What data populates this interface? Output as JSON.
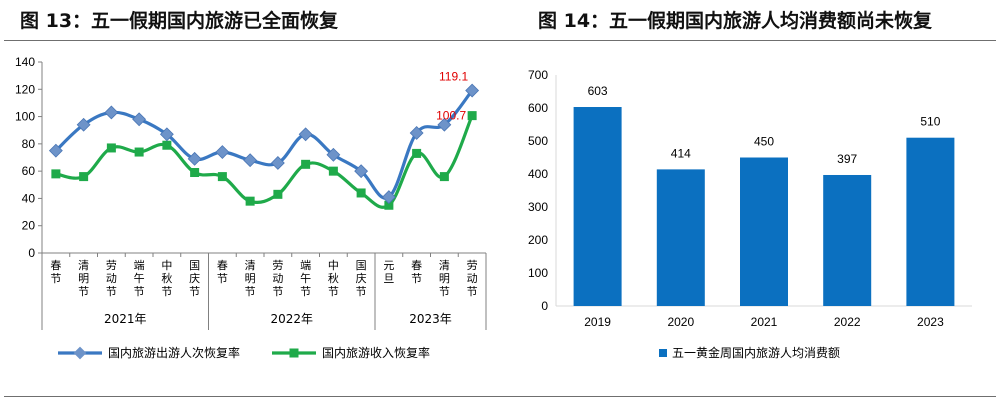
{
  "titles": {
    "left": "图 13：五一假期国内旅游已全面恢复",
    "right": "图 14：五一假期国内旅游人均消费额尚未恢复"
  },
  "chart_data": [
    {
      "type": "line",
      "categories": [
        "春节",
        "清明节",
        "劳动节",
        "端午节",
        "中秋节",
        "国庆节",
        "春节",
        "清明节",
        "劳动节",
        "端午节",
        "中秋节",
        "国庆节",
        "元旦",
        "春节",
        "清明节",
        "劳动节"
      ],
      "groups": [
        {
          "label": "2021年",
          "count": 6
        },
        {
          "label": "2022年",
          "count": 6
        },
        {
          "label": "2023年",
          "count": 4
        }
      ],
      "series": [
        {
          "name": "国内旅游出游人次恢复率",
          "color": "#3a78c2",
          "values": [
            75,
            94,
            103,
            98,
            87,
            69,
            74,
            68,
            66,
            87,
            72,
            60,
            41,
            88,
            94,
            119.1
          ]
        },
        {
          "name": "国内旅游收入恢复率",
          "color": "#1faa4a",
          "values": [
            58,
            56,
            77,
            74,
            79,
            59,
            56,
            38,
            43,
            65,
            60,
            44,
            35,
            73,
            56,
            100.7
          ]
        }
      ],
      "annotations": [
        {
          "series": 0,
          "index": 15,
          "text": "119.1"
        },
        {
          "series": 1,
          "index": 15,
          "text": "100.7"
        }
      ],
      "yticks": [
        0,
        20,
        40,
        60,
        80,
        100,
        120,
        140
      ],
      "ylim": [
        0,
        140
      ],
      "legend": "bottom"
    },
    {
      "type": "bar",
      "categories": [
        "2019",
        "2020",
        "2021",
        "2022",
        "2023"
      ],
      "values": [
        603,
        414,
        450,
        397,
        510
      ],
      "series_name": "五一黄金周国内旅游人均消费额",
      "color": "#0b70c0",
      "yticks": [
        0,
        100,
        200,
        300,
        400,
        500,
        600,
        700
      ],
      "ylim": [
        0,
        700
      ],
      "legend": "bottom"
    }
  ]
}
